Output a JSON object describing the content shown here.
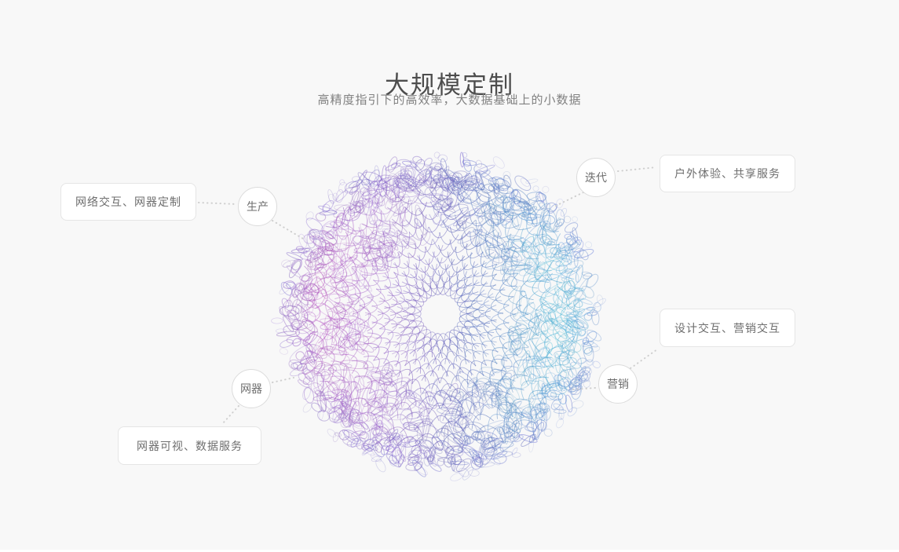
{
  "page": {
    "title": "大规模定制",
    "subtitle": "高精度指引下的高效率，大数据基础上的小数据"
  },
  "diagram": {
    "circles": [
      {
        "label": "生产"
      },
      {
        "label": "迭代"
      },
      {
        "label": "营销"
      },
      {
        "label": "网器"
      }
    ],
    "cards": [
      {
        "label": "网络交互、网器定制"
      },
      {
        "label": "户外体验、共享服务"
      },
      {
        "label": "设计交互、营销交互"
      },
      {
        "label": "网器可视、数据服务"
      }
    ],
    "colors": {
      "background": "#f8f8f8",
      "sphere_magenta": "#c050bb",
      "sphere_purple": "#9b64c8",
      "sphere_indigo": "#5a60b8",
      "sphere_cyan": "#46cede",
      "sphere_rim": "#7570cb",
      "connector_dots": "#cfcfcf"
    }
  }
}
